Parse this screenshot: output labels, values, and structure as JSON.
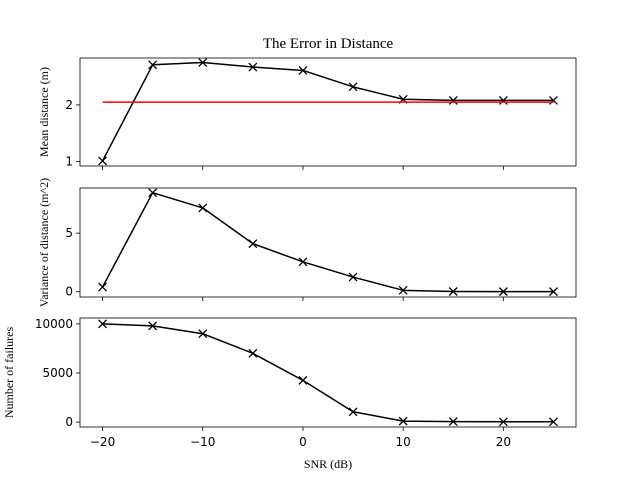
{
  "figure": {
    "title": "The Error in Distance",
    "xlabel": "SNR (dB)",
    "colors": {
      "series": "#000000",
      "reference": "#ff0000",
      "axes": "#000000",
      "background": "#ffffff"
    }
  },
  "chart_data": [
    {
      "type": "line",
      "title": "The Error in Distance",
      "xlabel": "",
      "ylabel": "Mean distance (m)",
      "x": [
        -20,
        -15,
        -10,
        -5,
        0,
        5,
        10,
        15,
        20,
        25
      ],
      "xlim": [
        -22.25,
        27.25
      ],
      "ylim": [
        0.92,
        2.83
      ],
      "xticks": [
        -20,
        -10,
        0,
        10,
        20
      ],
      "yticks": [
        1,
        2
      ],
      "show_xticklabels": false,
      "grid": false,
      "series": [
        {
          "values": [
            1.01,
            2.71,
            2.75,
            2.67,
            2.61,
            2.32,
            2.1,
            2.08,
            2.08,
            2.08
          ],
          "color": "#000000",
          "marker": "x"
        },
        {
          "x": [
            -20,
            25
          ],
          "values": [
            2.05,
            2.05
          ],
          "color": "#ff0000",
          "marker": "none"
        }
      ]
    },
    {
      "type": "line",
      "xlabel": "",
      "ylabel": "Variance of distance (m^2)",
      "x": [
        -20,
        -15,
        -10,
        -5,
        0,
        5,
        10,
        15,
        20,
        25
      ],
      "xlim": [
        -22.25,
        27.25
      ],
      "ylim": [
        -0.45,
        8.85
      ],
      "xticks": [
        -20,
        -10,
        0,
        10,
        20
      ],
      "yticks": [
        0,
        5
      ],
      "show_xticklabels": false,
      "grid": false,
      "series": [
        {
          "values": [
            0.4,
            8.45,
            7.15,
            4.1,
            2.55,
            1.25,
            0.12,
            0.02,
            0.01,
            0.01
          ],
          "color": "#000000",
          "marker": "x"
        }
      ]
    },
    {
      "type": "line",
      "xlabel": "SNR (dB)",
      "ylabel": "Number of failures",
      "x": [
        -20,
        -15,
        -10,
        -5,
        0,
        5,
        10,
        15,
        20,
        25
      ],
      "xlim": [
        -22.25,
        27.25
      ],
      "ylim": [
        -500,
        10600
      ],
      "xticks": [
        -20,
        -10,
        0,
        10,
        20
      ],
      "xticklabels": [
        "−20",
        "−10",
        "0",
        "10",
        "20"
      ],
      "yticks": [
        0,
        5000,
        10000
      ],
      "show_xticklabels": true,
      "grid": false,
      "series": [
        {
          "values": [
            10000,
            9800,
            9000,
            7000,
            4250,
            1050,
            100,
            50,
            30,
            30
          ],
          "color": "#000000",
          "marker": "x"
        }
      ]
    }
  ]
}
